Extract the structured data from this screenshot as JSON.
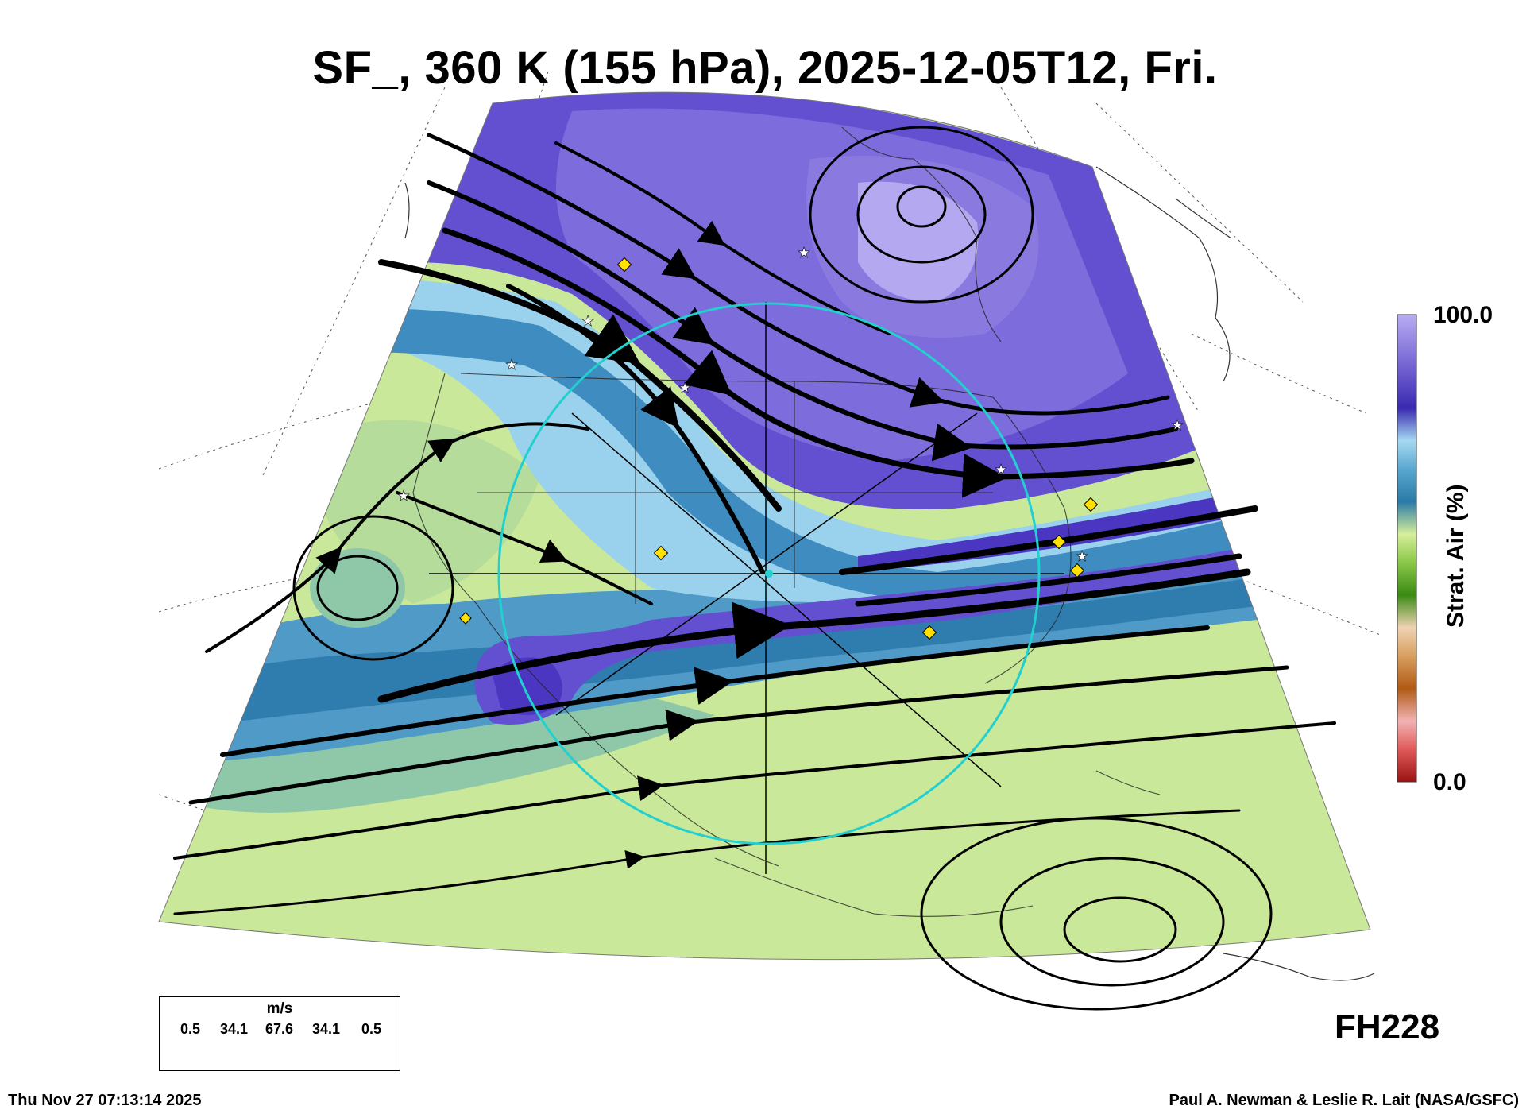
{
  "title": "SF_, 360 K (155 hPa), 2025-12-05T12, Fri.",
  "colorbar": {
    "max_label": "100.0",
    "min_label": "0.0",
    "title": "Strat. Air (%)",
    "colors": [
      "#9a1414",
      "#e05a5a",
      "#f2b3b3",
      "#b05a14",
      "#d9a060",
      "#f0d3b3",
      "#3a8a14",
      "#8cc84a",
      "#d6ef9a",
      "#2a7aa8",
      "#5aa8d0",
      "#a6d9f2",
      "#3a2ab0",
      "#7a6ad6",
      "#b8acf2"
    ]
  },
  "wind_key": {
    "unit": "m/s",
    "values": [
      "0.5",
      "34.1",
      "67.6",
      "34.1",
      "0.5"
    ]
  },
  "forecast_hour": "FH228",
  "timestamp": "Thu Nov 27 07:13:14 2025",
  "credit": "Paul A. Newman & Leslie R. Lait (NASA/GSFC)",
  "map": {
    "field_colors": {
      "strat_high": "#6350d0",
      "strat_mid": "#8a7ae0",
      "strat_core": "#b4a8f0",
      "transition": "#3f8cc0",
      "edge": "#9ad2ee",
      "trop": "#c9e89a",
      "trop_mid": "#8fc8a8"
    },
    "ring_color": "#22d0d0",
    "marker_color": "#ffe000"
  }
}
